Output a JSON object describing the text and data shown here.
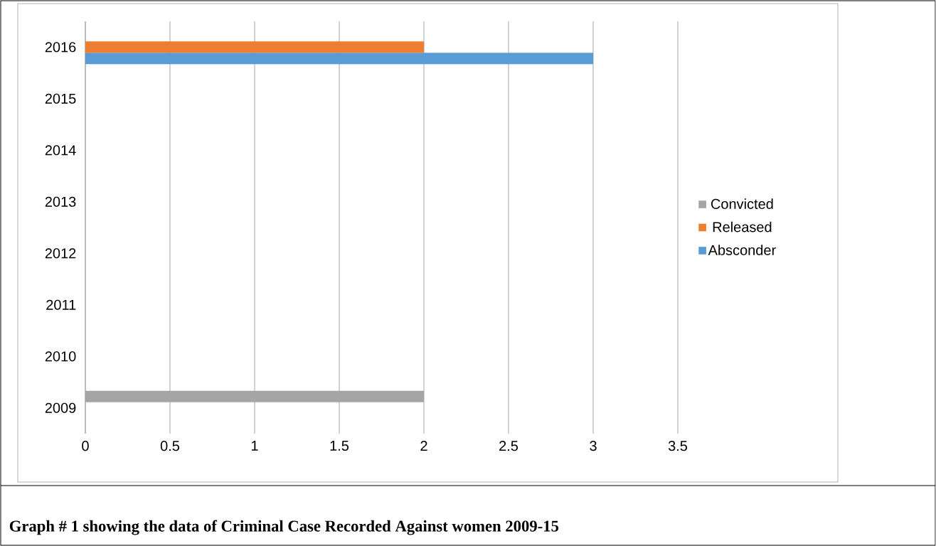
{
  "chart_data": {
    "type": "bar",
    "orientation": "horizontal",
    "categories": [
      "2016",
      "2015",
      "2014",
      "2013",
      "2012",
      "2011",
      "2010",
      "2009"
    ],
    "series": [
      {
        "name": "Absconder",
        "color": "#5b9bd5",
        "values": [
          3,
          null,
          null,
          null,
          null,
          null,
          null,
          null
        ]
      },
      {
        "name": "Released",
        "color": "#ed7d31",
        "values": [
          2,
          null,
          null,
          null,
          null,
          null,
          null,
          null
        ]
      },
      {
        "name": "Convicted",
        "color": "#a5a5a5",
        "values": [
          null,
          null,
          null,
          null,
          null,
          null,
          null,
          2
        ]
      }
    ],
    "xlim": [
      0,
      3.5
    ],
    "xticks": [
      0,
      0.5,
      1,
      1.5,
      2,
      2.5,
      3,
      3.5
    ],
    "grid": "x",
    "legend": "right",
    "annotations": [
      "Graph # 1 showing the data of Criminal Case Recorded Against women 2009-15"
    ]
  }
}
